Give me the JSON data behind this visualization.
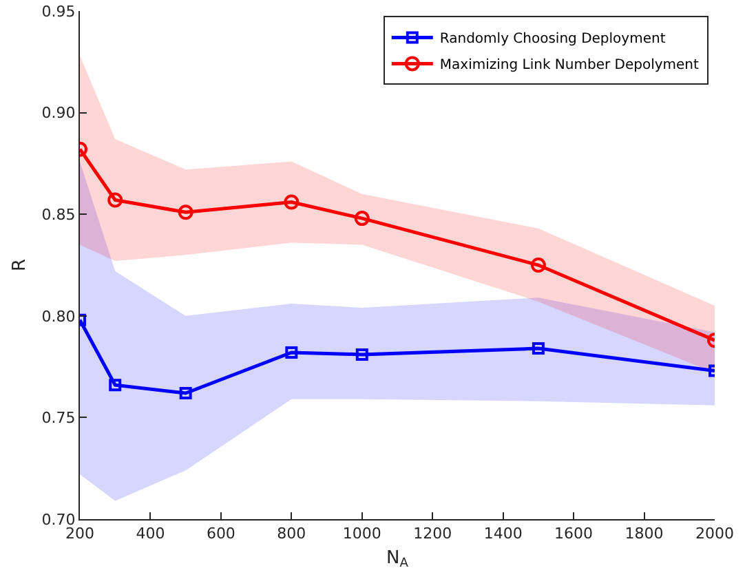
{
  "chart_data": {
    "type": "line",
    "xlabel": "N$_{A}$",
    "ylabel": "R",
    "x": [
      200,
      300,
      500,
      800,
      1000,
      1500,
      2000
    ],
    "xlim": [
      200,
      2000
    ],
    "xticks": [
      200,
      400,
      600,
      800,
      1000,
      1200,
      1400,
      1600,
      1800,
      2000
    ],
    "ylim": [
      0.7,
      0.95
    ],
    "yticks": [
      {
        "value": 0.7,
        "label": "0.70"
      },
      0.75,
      {
        "value": 0.8,
        "label": "0.80"
      },
      0.85,
      {
        "value": 0.9,
        "label": "0.90"
      },
      0.95
    ],
    "grid": false,
    "legend": "top right",
    "line_style": "solid",
    "series": [
      {
        "name": "Randomly Choosing Deployment",
        "color": "#0000ff",
        "marker": "square",
        "values": [
          0.798,
          0.766,
          0.762,
          0.782,
          0.781,
          0.784,
          0.773
        ],
        "lower": [
          0.722,
          0.709,
          0.724,
          0.759,
          0.759,
          0.758,
          0.756
        ],
        "upper": [
          0.876,
          0.822,
          0.8,
          0.806,
          0.804,
          0.809,
          0.792
        ]
      },
      {
        "name": "Maximizing Link Number Depolyment",
        "color": "#ff0000",
        "marker": "circle",
        "values": [
          0.882,
          0.857,
          0.851,
          0.856,
          0.848,
          0.825,
          0.788
        ],
        "lower": [
          0.835,
          0.827,
          0.83,
          0.836,
          0.835,
          0.807,
          0.772
        ],
        "upper": [
          0.928,
          0.887,
          0.872,
          0.876,
          0.86,
          0.843,
          0.805
        ]
      }
    ]
  }
}
